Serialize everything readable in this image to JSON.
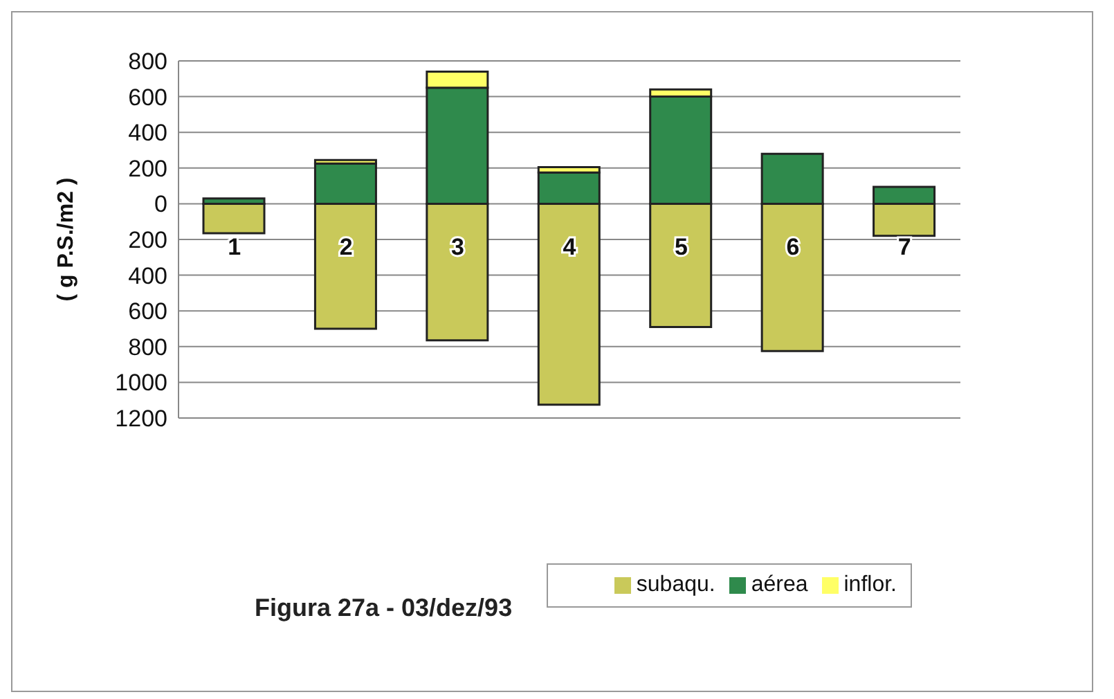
{
  "chart_data": {
    "type": "bar",
    "title": "Figura 27a - 03/dez/93",
    "ylabel": "( g P.S./m2 )",
    "categories": [
      "1",
      "2",
      "3",
      "4",
      "5",
      "6",
      "7"
    ],
    "stacked": true,
    "series": [
      {
        "name": "subaqu.",
        "color": "#c9c95a",
        "values": [
          -165,
          -700,
          -765,
          -1125,
          -690,
          -825,
          -180
        ]
      },
      {
        "name": "aérea",
        "color": "#2f8a4c",
        "values": [
          30,
          225,
          650,
          175,
          600,
          280,
          95
        ]
      },
      {
        "name": "inflor.",
        "color": "#ffff66",
        "values": [
          0,
          20,
          90,
          30,
          40,
          0,
          0
        ]
      }
    ],
    "ylim": [
      -1200,
      800
    ],
    "yticks": [
      800,
      600,
      400,
      200,
      0,
      {
        "value": -200,
        "label": "200"
      },
      {
        "value": -400,
        "label": "400"
      },
      {
        "value": -600,
        "label": "600"
      },
      {
        "value": -800,
        "label": "800"
      },
      {
        "value": -1000,
        "label": "1000"
      },
      {
        "value": -1200,
        "label": "1200"
      }
    ],
    "grid": "y",
    "legend": "bottom"
  }
}
